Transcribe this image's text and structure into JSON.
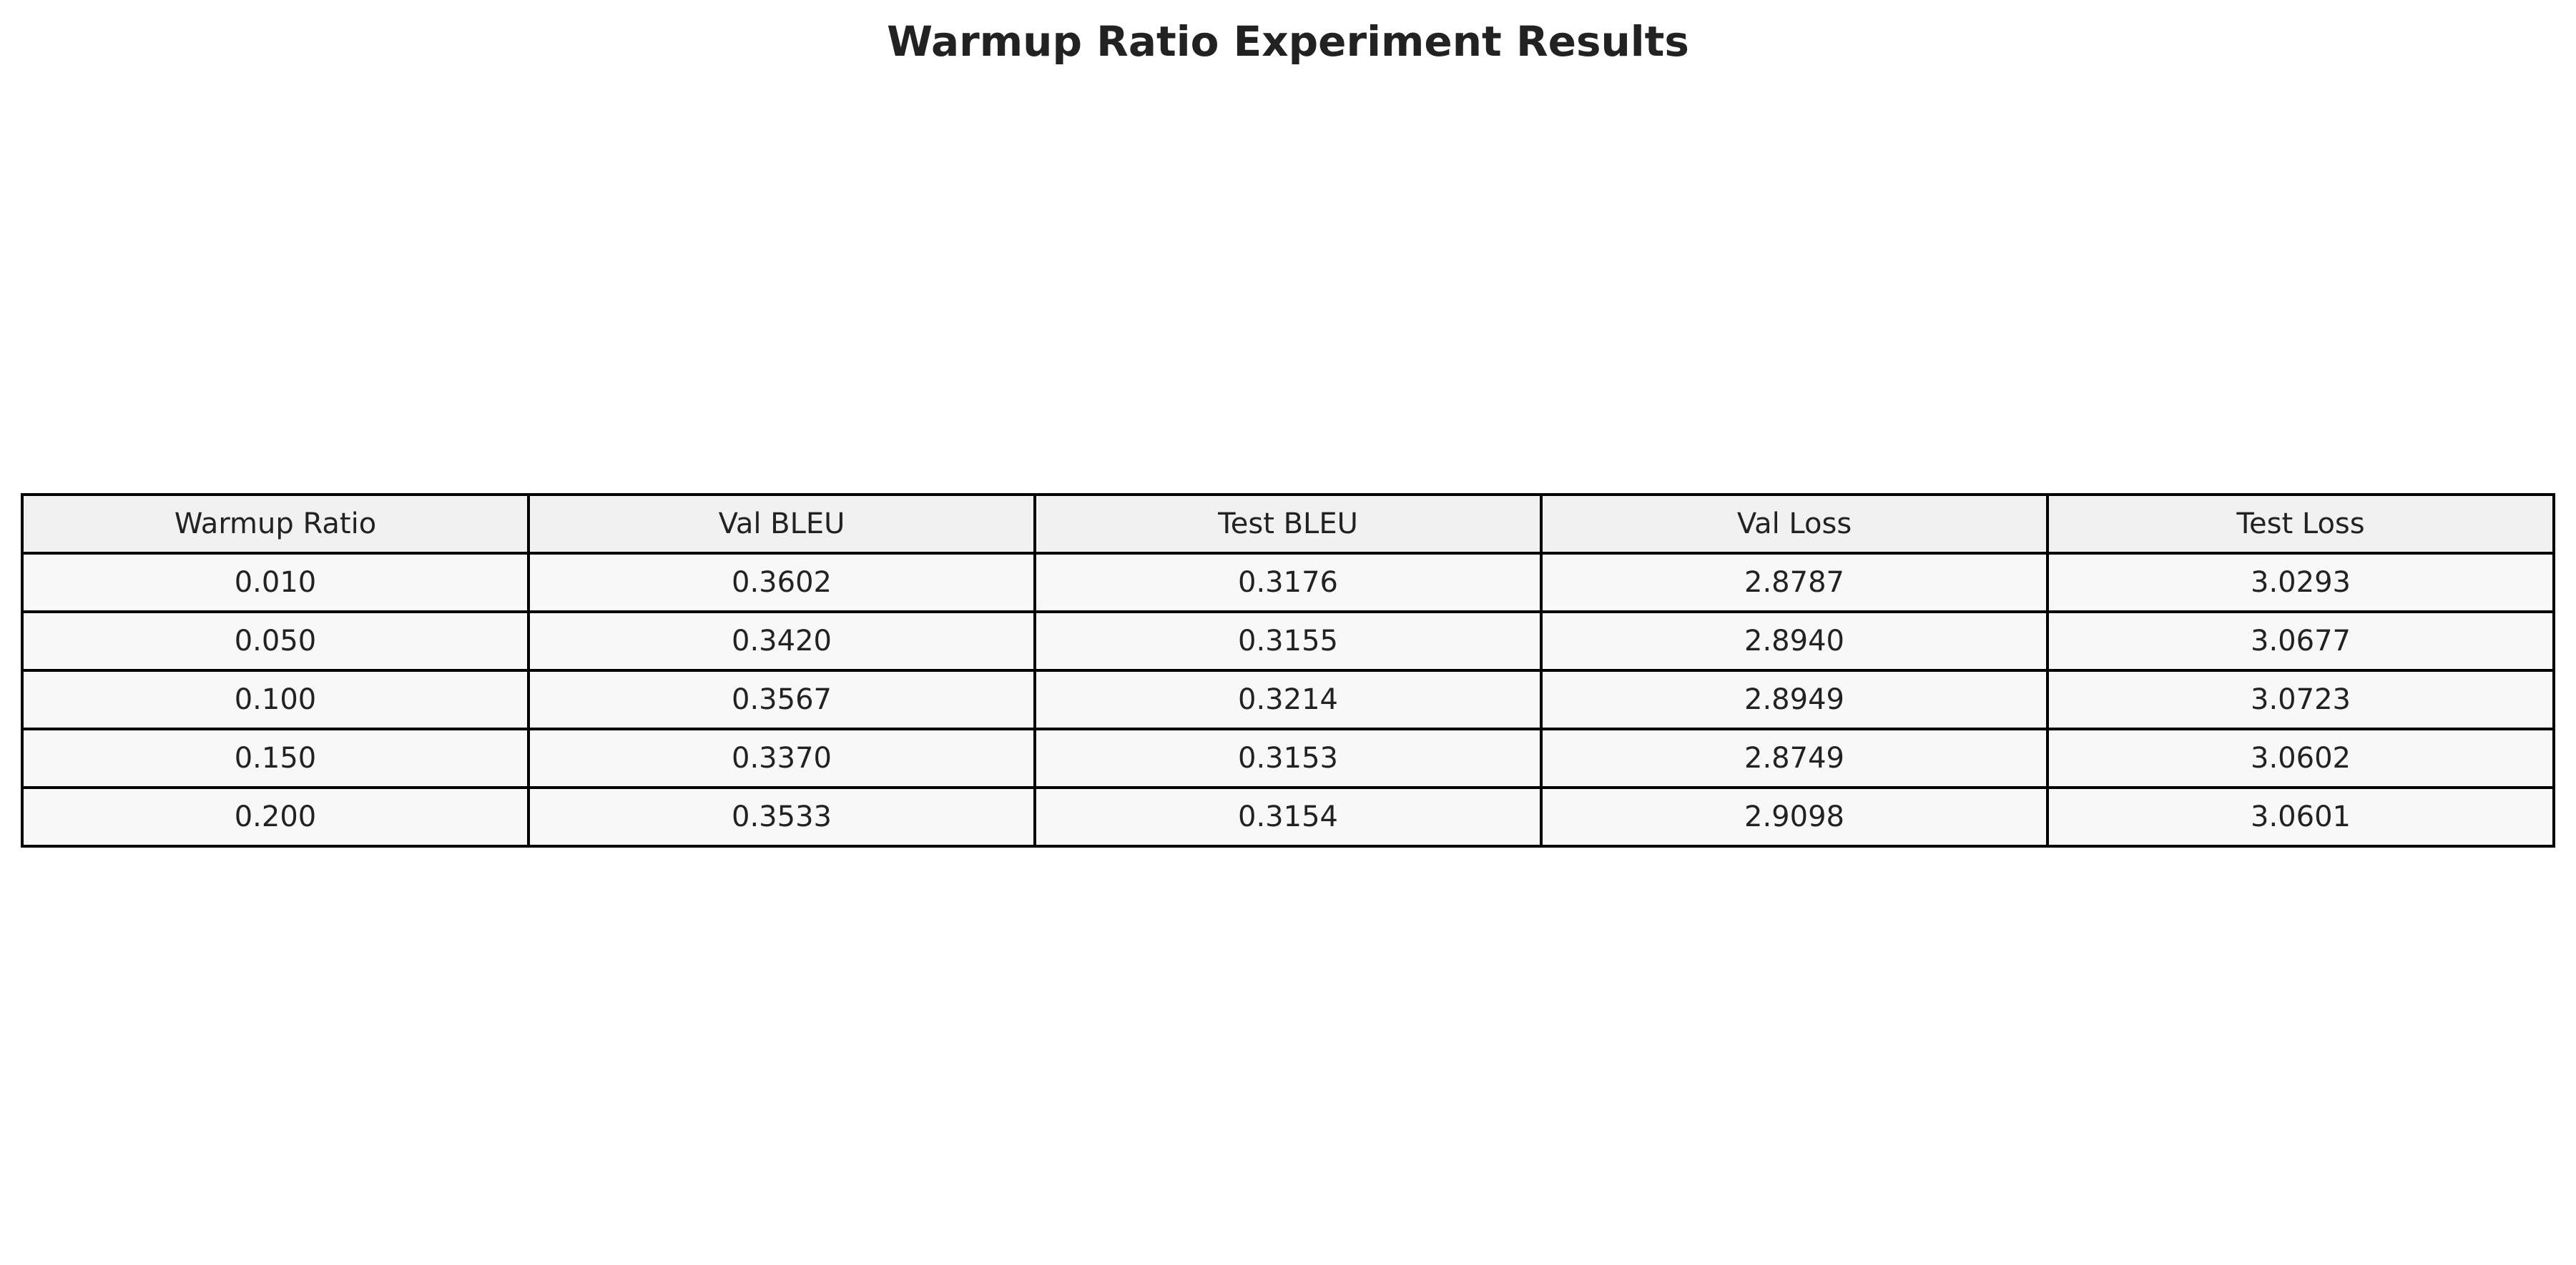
{
  "chart_data": {
    "type": "table",
    "title": "Warmup Ratio Experiment Results",
    "columns": [
      "Warmup Ratio",
      "Val BLEU",
      "Test BLEU",
      "Val Loss",
      "Test Loss"
    ],
    "rows": [
      [
        "0.010",
        "0.3602",
        "0.3176",
        "2.8787",
        "3.0293"
      ],
      [
        "0.050",
        "0.3420",
        "0.3155",
        "2.8940",
        "3.0677"
      ],
      [
        "0.100",
        "0.3567",
        "0.3214",
        "2.8949",
        "3.0723"
      ],
      [
        "0.150",
        "0.3370",
        "0.3153",
        "2.8749",
        "3.0602"
      ],
      [
        "0.200",
        "0.3533",
        "0.3154",
        "2.9098",
        "3.0601"
      ]
    ],
    "colors": {
      "header_background": "#f1f1f1",
      "cell_background": "#f8f8f8",
      "border": "#000000",
      "text": "#222222"
    }
  }
}
